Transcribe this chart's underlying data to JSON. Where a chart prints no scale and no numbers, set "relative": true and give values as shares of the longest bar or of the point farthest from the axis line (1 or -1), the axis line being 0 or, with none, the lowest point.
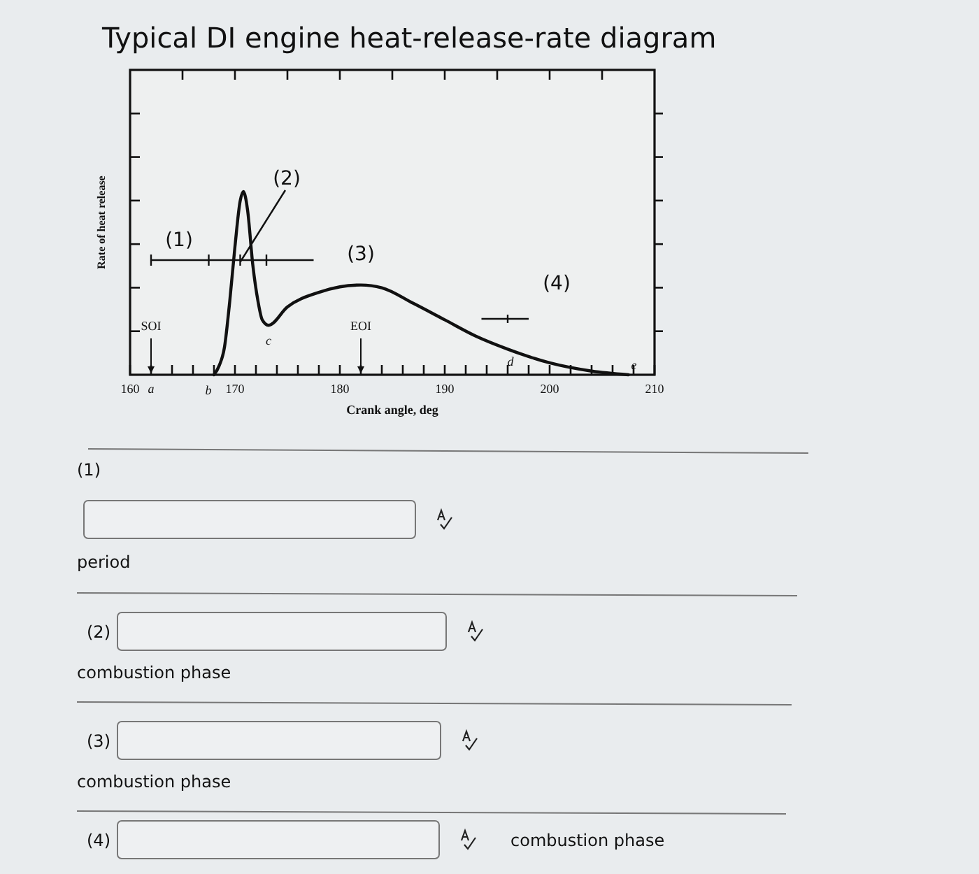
{
  "chart_data": {
    "type": "line",
    "title": "Typical DI engine heat-release-rate diagram",
    "xlabel": "Crank angle, deg",
    "ylabel": "Rate of heat release",
    "relative": true,
    "color": "#111111",
    "x": [
      168,
      168.5,
      169,
      169.5,
      170,
      170.5,
      170.8,
      171.2,
      171.7,
      172.2,
      172.6,
      173.2,
      175,
      178,
      180,
      182,
      184,
      187,
      190,
      193,
      196,
      200,
      204,
      207.5
    ],
    "values": [
      0,
      0.05,
      0.15,
      0.4,
      0.7,
      0.95,
      1,
      0.9,
      0.6,
      0.4,
      0.3,
      0.27,
      0.37,
      0.45,
      0.48,
      0.49,
      0.475,
      0.39,
      0.3,
      0.21,
      0.14,
      0.065,
      0.02,
      0
    ],
    "xlim": [
      160,
      210
    ],
    "xticks": [
      160,
      {
        "value": 162,
        "label": null
      },
      {
        "value": 164,
        "label": null
      },
      {
        "value": 166,
        "label": null
      },
      {
        "value": 168,
        "label": null
      },
      170,
      {
        "value": 172,
        "label": null
      },
      {
        "value": 174,
        "label": null
      },
      {
        "value": 176,
        "label": null
      },
      {
        "value": 178,
        "label": null
      },
      180,
      {
        "value": 182,
        "label": null
      },
      {
        "value": 184,
        "label": null
      },
      {
        "value": 186,
        "label": null
      },
      {
        "value": 188,
        "label": null
      },
      190,
      {
        "value": 192,
        "label": null
      },
      {
        "value": 194,
        "label": null
      },
      {
        "value": 196,
        "label": null
      },
      {
        "value": 198,
        "label": null
      },
      200,
      {
        "value": 202,
        "label": null
      },
      {
        "value": 204,
        "label": null
      },
      {
        "value": 206,
        "label": null
      },
      {
        "value": 208,
        "label": null
      },
      210
    ],
    "marker": "none",
    "line_style": "solid",
    "annotations": [
      "a",
      "SOI",
      "EOI",
      "(1)",
      "(2)",
      "(4)",
      {
        "text": "b",
        "x": 168,
        "y": 0
      },
      {
        "text": "c",
        "x": 173.2,
        "y": 0.27
      },
      {
        "text": "d",
        "x": 196,
        "y": 0.14
      },
      {
        "text": "e",
        "x": 207.5,
        "y": 0
      },
      {
        "text": "(3)",
        "x": 182,
        "y": 0.49
      },
      "(1)",
      "period",
      "(2)",
      "combustion phase",
      "(3)",
      "combustion phase",
      "(4)",
      "combustion phase"
    ]
  }
}
